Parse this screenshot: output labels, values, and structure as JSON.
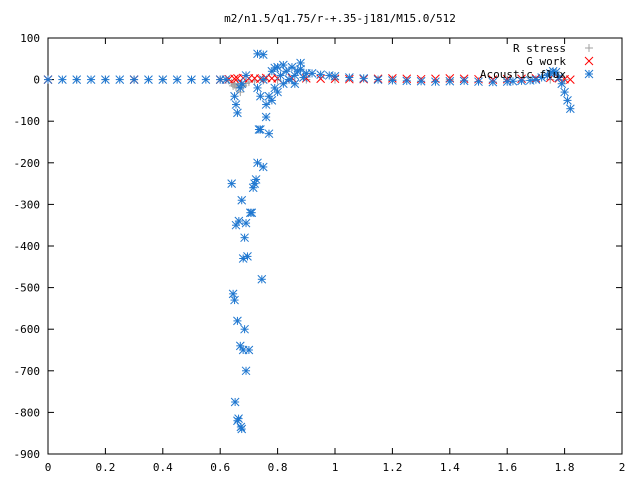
{
  "chart_data": {
    "type": "scatter",
    "title": "m2/n1.5/q1.75/r-+.35-j181/M15.0/512",
    "xlabel": "",
    "ylabel": "",
    "xlim": [
      0,
      2
    ],
    "ylim": [
      -900,
      100
    ],
    "x_ticks": [
      "0",
      "0.2",
      "0.4",
      "0.6",
      "0.8",
      "1",
      "1.2",
      "1.4",
      "1.6",
      "1.8",
      "2"
    ],
    "y_ticks": [
      "100",
      "0",
      "-100",
      "-200",
      "-300",
      "-400",
      "-500",
      "-600",
      "-700",
      "-800",
      "-900"
    ],
    "grid": false,
    "legend_position": "top-right",
    "series": [
      {
        "name": "R stress",
        "marker": "plus",
        "color": "#a0a0a0",
        "x": [
          0.0,
          0.1,
          0.2,
          0.3,
          0.4,
          0.5,
          0.6,
          0.63,
          0.64,
          0.645,
          0.65,
          0.655,
          0.66,
          0.665,
          0.67,
          0.675,
          0.68,
          0.69,
          0.7,
          0.72,
          0.75,
          0.8,
          0.9,
          1.0,
          1.2,
          1.4,
          1.6,
          1.75,
          1.8
        ],
        "y": [
          0,
          0,
          0,
          0,
          0,
          0,
          0,
          -2,
          -8,
          -15,
          -12,
          -18,
          -10,
          -20,
          -30,
          -14,
          -15,
          -9,
          -6,
          -3,
          -2,
          -1,
          0,
          0,
          0,
          0,
          0,
          0,
          0
        ]
      },
      {
        "name": "G work",
        "marker": "cross",
        "color": "#ff0000",
        "x": [
          0.0,
          0.3,
          0.6,
          0.63,
          0.65,
          0.66,
          0.68,
          0.7,
          0.72,
          0.74,
          0.76,
          0.78,
          0.8,
          0.85,
          0.9,
          0.95,
          1.0,
          1.05,
          1.1,
          1.15,
          1.2,
          1.25,
          1.3,
          1.35,
          1.4,
          1.45,
          1.5,
          1.55,
          1.6,
          1.65,
          1.7,
          1.75,
          1.78,
          1.8,
          1.82
        ],
        "y": [
          0,
          0,
          0,
          1,
          2,
          3,
          4,
          3,
          3,
          2,
          4,
          3,
          3,
          4,
          3,
          2,
          2,
          1,
          1,
          2,
          3,
          2,
          1,
          2,
          3,
          2,
          1,
          0,
          1,
          2,
          3,
          4,
          3,
          1,
          0
        ]
      },
      {
        "name": "Acoustic flux",
        "marker": "star",
        "color": "#1f77d0",
        "x": [
          0.0,
          0.05,
          0.1,
          0.15,
          0.2,
          0.25,
          0.3,
          0.35,
          0.4,
          0.45,
          0.5,
          0.55,
          0.6,
          0.62,
          0.64,
          0.645,
          0.65,
          0.655,
          0.66,
          0.665,
          0.67,
          0.675,
          0.68,
          0.685,
          0.69,
          0.695,
          0.7,
          0.705,
          0.71,
          0.715,
          0.72,
          0.725,
          0.73,
          0.735,
          0.74,
          0.745,
          0.75,
          0.652,
          0.66,
          0.664,
          0.672,
          0.675,
          0.68,
          0.685,
          0.69,
          0.65,
          0.655,
          0.66,
          0.67,
          0.675,
          0.69,
          0.73,
          0.73,
          0.74,
          0.75,
          0.76,
          0.77,
          0.78,
          0.79,
          0.8,
          0.81,
          0.82,
          0.83,
          0.84,
          0.85,
          0.86,
          0.87,
          0.88,
          0.89,
          0.9,
          0.76,
          0.78,
          0.8,
          0.82,
          0.84,
          0.86,
          0.88,
          0.75,
          0.77,
          0.79,
          0.92,
          0.95,
          0.98,
          1.0,
          1.05,
          1.1,
          1.15,
          1.2,
          1.25,
          1.3,
          1.35,
          1.4,
          1.45,
          1.5,
          1.55,
          1.6,
          1.62,
          1.65,
          1.68,
          1.7,
          1.72,
          1.74,
          1.75,
          1.76,
          1.77,
          1.78,
          1.79,
          1.8,
          1.81,
          1.82
        ],
        "y": [
          0,
          0,
          0,
          0,
          0,
          0,
          0,
          0,
          0,
          0,
          0,
          0,
          0,
          0,
          -250,
          -515,
          -530,
          -350,
          -580,
          -340,
          -640,
          -290,
          -430,
          -380,
          -345,
          -425,
          -650,
          -320,
          -320,
          -260,
          -250,
          -240,
          -200,
          -120,
          -120,
          -480,
          -210,
          -775,
          -820,
          -815,
          -835,
          -840,
          -650,
          -600,
          -700,
          -40,
          -60,
          -80,
          -20,
          -10,
          10,
          62,
          -20,
          -40,
          0,
          -60,
          -40,
          20,
          -20,
          30,
          10,
          35,
          20,
          0,
          30,
          -10,
          20,
          40,
          5,
          15,
          -90,
          -50,
          -30,
          -10,
          0,
          10,
          25,
          60,
          -130,
          28,
          15,
          12,
          10,
          8,
          5,
          3,
          0,
          -2,
          -3,
          -4,
          -5,
          -4,
          -3,
          -5,
          -6,
          -5,
          -4,
          -3,
          -2,
          0,
          5,
          10,
          15,
          20,
          18,
          5,
          -10,
          -30,
          -50,
          -70
        ]
      }
    ]
  }
}
